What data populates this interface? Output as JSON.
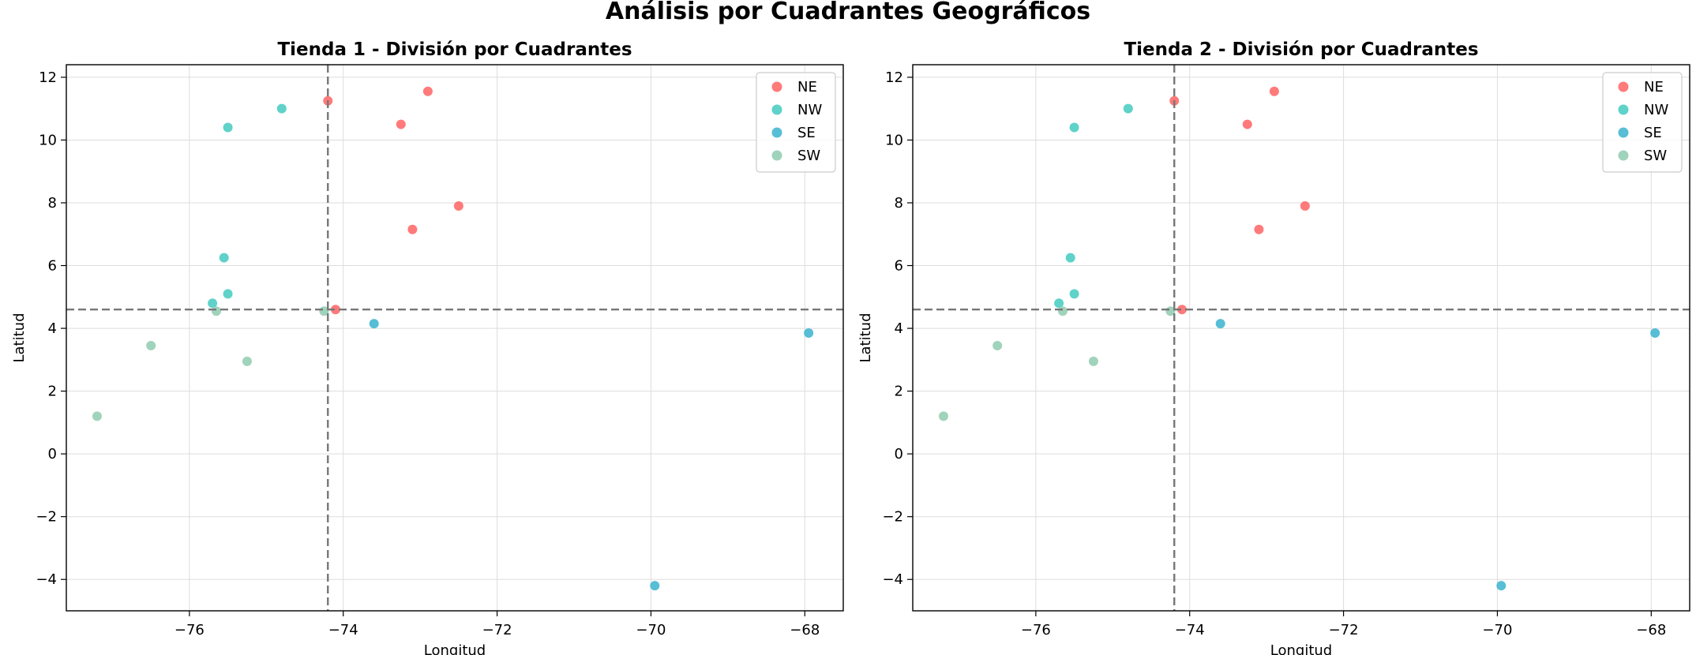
{
  "figure": {
    "suptitle": "Análisis por Cuadrantes Geográficos"
  },
  "quadrant_colors": {
    "NE": "#ff6b6b",
    "NW": "#4ecdc4",
    "SE": "#45b7d1",
    "SW": "#96ceb4"
  },
  "chart_data": [
    {
      "type": "scatter",
      "title": "Tienda 1 - División por Cuadrantes",
      "xlabel": "Longitud",
      "ylabel": "Latitud",
      "xlim": [
        -77.6,
        -67.5
      ],
      "ylim": [
        -5.0,
        12.4
      ],
      "xticks": [
        -76,
        -74,
        -72,
        -70,
        -68
      ],
      "yticks": [
        -4,
        -2,
        0,
        2,
        4,
        6,
        8,
        10,
        12
      ],
      "grid": true,
      "legend_position": "top-right",
      "divider_x": -74.2,
      "divider_y": 4.6,
      "series": [
        {
          "name": "NE",
          "color": "#ff6b6b",
          "points": [
            [
              -74.2,
              11.25
            ],
            [
              -72.9,
              11.55
            ],
            [
              -73.25,
              10.5
            ],
            [
              -72.5,
              7.9
            ],
            [
              -73.1,
              7.15
            ],
            [
              -74.1,
              4.6
            ]
          ]
        },
        {
          "name": "NW",
          "color": "#4ecdc4",
          "points": [
            [
              -74.8,
              11.0
            ],
            [
              -75.5,
              10.4
            ],
            [
              -75.55,
              6.25
            ],
            [
              -75.5,
              5.1
            ],
            [
              -75.7,
              4.8
            ]
          ]
        },
        {
          "name": "SE",
          "color": "#45b7d1",
          "points": [
            [
              -73.6,
              4.15
            ],
            [
              -67.95,
              3.85
            ],
            [
              -69.95,
              -4.2
            ]
          ]
        },
        {
          "name": "SW",
          "color": "#96ceb4",
          "points": [
            [
              -74.25,
              4.55
            ],
            [
              -75.65,
              4.55
            ],
            [
              -76.5,
              3.45
            ],
            [
              -75.25,
              2.95
            ],
            [
              -77.2,
              1.2
            ]
          ]
        }
      ]
    },
    {
      "type": "scatter",
      "title": "Tienda 2 - División por Cuadrantes",
      "xlabel": "Longitud",
      "ylabel": "Latitud",
      "xlim": [
        -77.6,
        -67.5
      ],
      "ylim": [
        -5.0,
        12.4
      ],
      "xticks": [
        -76,
        -74,
        -72,
        -70,
        -68
      ],
      "yticks": [
        -4,
        -2,
        0,
        2,
        4,
        6,
        8,
        10,
        12
      ],
      "grid": true,
      "legend_position": "top-right",
      "divider_x": -74.2,
      "divider_y": 4.6,
      "series": [
        {
          "name": "NE",
          "color": "#ff6b6b",
          "points": [
            [
              -74.2,
              11.25
            ],
            [
              -72.9,
              11.55
            ],
            [
              -73.25,
              10.5
            ],
            [
              -72.5,
              7.9
            ],
            [
              -73.1,
              7.15
            ],
            [
              -74.1,
              4.6
            ]
          ]
        },
        {
          "name": "NW",
          "color": "#4ecdc4",
          "points": [
            [
              -74.8,
              11.0
            ],
            [
              -75.5,
              10.4
            ],
            [
              -75.55,
              6.25
            ],
            [
              -75.5,
              5.1
            ],
            [
              -75.7,
              4.8
            ]
          ]
        },
        {
          "name": "SE",
          "color": "#45b7d1",
          "points": [
            [
              -73.6,
              4.15
            ],
            [
              -67.95,
              3.85
            ],
            [
              -69.95,
              -4.2
            ]
          ]
        },
        {
          "name": "SW",
          "color": "#96ceb4",
          "points": [
            [
              -74.25,
              4.55
            ],
            [
              -75.65,
              4.55
            ],
            [
              -76.5,
              3.45
            ],
            [
              -75.25,
              2.95
            ],
            [
              -77.2,
              1.2
            ]
          ]
        }
      ]
    }
  ]
}
